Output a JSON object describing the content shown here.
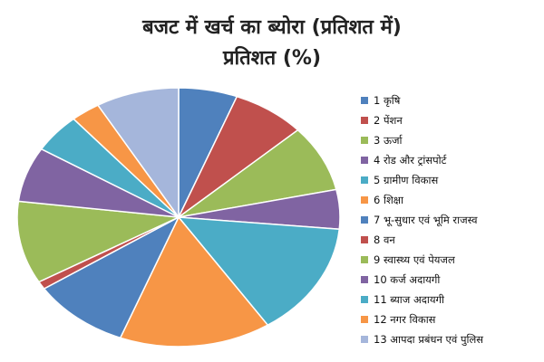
{
  "chart_data": {
    "type": "pie",
    "title": "बजट में खर्च का ब्योरा (प्रतिशत में)",
    "subtitle": "प्रतिशत (%)",
    "legend_position": "right",
    "slices": [
      {
        "label": "1 कृषि",
        "value": 6.0,
        "color": "#4f81bd"
      },
      {
        "label": "2 पेंशन",
        "value": 7.5,
        "color": "#c0504d"
      },
      {
        "label": "3 ऊर्जा",
        "value": 8.5,
        "color": "#9bbb59"
      },
      {
        "label": "4 रोड और ट्रांसपोर्ट",
        "value": 5.0,
        "color": "#8064a2"
      },
      {
        "label": "5 ग्रामीण विकास",
        "value": 14.5,
        "color": "#4bacc6"
      },
      {
        "label": "6 शिक्षा",
        "value": 15.5,
        "color": "#f79646"
      },
      {
        "label": "7 भू-सुधार एवं भूमि राजस्व",
        "value": 10.0,
        "color": "#4f81bd"
      },
      {
        "label": "8 वन",
        "value": 1.0,
        "color": "#c0504d"
      },
      {
        "label": "9 स्वास्थ्य एवं पेयजल",
        "value": 10.5,
        "color": "#9bbb59"
      },
      {
        "label": "10 कर्ज अदायगी",
        "value": 7.0,
        "color": "#8064a2"
      },
      {
        "label": "11 ब्याज अदायगी",
        "value": 5.0,
        "color": "#4bacc6"
      },
      {
        "label": "12 नगर विकास",
        "value": 3.0,
        "color": "#f79646"
      },
      {
        "label": "13 आपदा प्रबंधन एवं पुलिस",
        "value": 8.5,
        "color": "#a5b6db"
      }
    ]
  }
}
